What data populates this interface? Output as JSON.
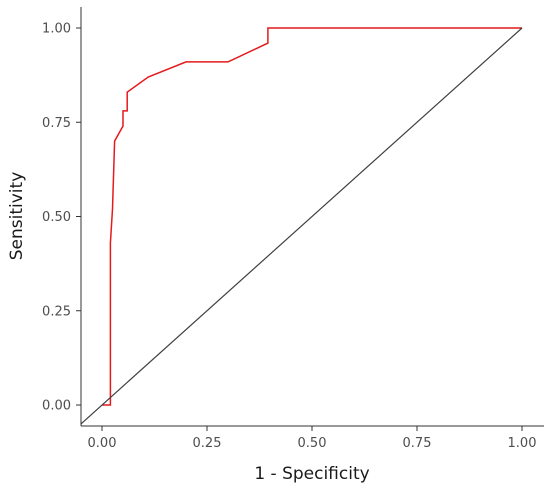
{
  "chart_data": {
    "type": "line",
    "title": "",
    "xlabel": "1 - Specificity",
    "ylabel": "Sensitivity",
    "xlim": [
      0,
      1
    ],
    "ylim": [
      0,
      1
    ],
    "x_ticks": [
      "0.00",
      "0.25",
      "0.50",
      "0.75",
      "1.00"
    ],
    "y_ticks": [
      "0.00",
      "0.25",
      "0.50",
      "0.75",
      "1.00"
    ],
    "x_tick_values": [
      0,
      0.25,
      0.5,
      0.75,
      1
    ],
    "y_tick_values": [
      0,
      0.25,
      0.5,
      0.75,
      1
    ],
    "grid": false,
    "series": [
      {
        "color": "#e41a1c",
        "style": "step",
        "points": [
          [
            0.0,
            0.0
          ],
          [
            0.02,
            0.0
          ],
          [
            0.02,
            0.43
          ],
          [
            0.025,
            0.52
          ],
          [
            0.03,
            0.7
          ],
          [
            0.05,
            0.74
          ],
          [
            0.05,
            0.78
          ],
          [
            0.06,
            0.78
          ],
          [
            0.06,
            0.83
          ],
          [
            0.11,
            0.87
          ],
          [
            0.2,
            0.91
          ],
          [
            0.3,
            0.91
          ],
          [
            0.395,
            0.96
          ],
          [
            0.395,
            1.0
          ],
          [
            1.0,
            1.0
          ]
        ]
      },
      {
        "color": "#404040",
        "style": "diagonal",
        "points": [
          [
            -0.05,
            -0.05
          ],
          [
            1.0,
            1.0
          ]
        ]
      }
    ]
  }
}
